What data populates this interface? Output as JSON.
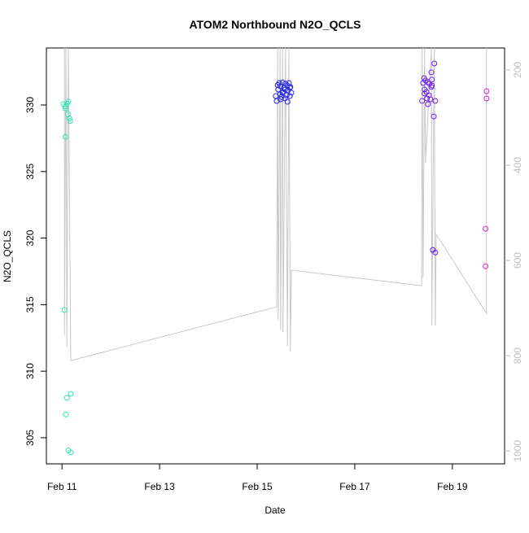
{
  "chart_data": {
    "type": "scatter",
    "title": "ATOM2 Northbound N2O_QCLS",
    "x_label": "Date",
    "y_label": "N2O_QCLS",
    "xlim": [
      10.68,
      20.07
    ],
    "xticks": [
      {
        "value": 11,
        "label": "Feb 11"
      },
      {
        "value": 13,
        "label": "Feb 13"
      },
      {
        "value": 15,
        "label": "Feb 15"
      },
      {
        "value": 17,
        "label": "Feb 17"
      },
      {
        "value": 19,
        "label": "Feb 19"
      }
    ],
    "ylim": [
      303.04,
      334.28
    ],
    "yticks": [
      305,
      310,
      315,
      320,
      325,
      330
    ],
    "y2lim": [
      1027,
      154
    ],
    "y2ticks": [
      200,
      400,
      600,
      800,
      1000
    ],
    "y2_color": "#bebebe",
    "series": [
      {
        "color": "#2ee8b4",
        "x": [
          11.03,
          11.07,
          11.1,
          11.13,
          11.07,
          11.12,
          11.15,
          11.17,
          11.07,
          11.05,
          11.1,
          11.18,
          11.08,
          11.13,
          11.18
        ],
        "values": [
          330.06,
          329.9,
          330.1,
          330.25,
          329.75,
          329.3,
          329.0,
          328.8,
          327.6,
          314.6,
          308.0,
          308.3,
          306.75,
          304.05,
          303.9
        ]
      },
      {
        "color": "#2222e8",
        "x": [
          15.42,
          15.45,
          15.48,
          15.52,
          15.55,
          15.58,
          15.62,
          15.65,
          15.68,
          15.43,
          15.47,
          15.5,
          15.53,
          15.57,
          15.6,
          15.63,
          15.67,
          15.7,
          15.4,
          15.48,
          15.57,
          15.62,
          15.38,
          15.52,
          15.67
        ],
        "values": [
          331.5,
          331.65,
          331.4,
          331.7,
          331.3,
          331.6,
          331.45,
          331.65,
          331.35,
          331.16,
          330.8,
          330.6,
          330.98,
          330.5,
          330.73,
          331.1,
          330.67,
          330.92,
          330.3,
          330.43,
          331.16,
          330.24,
          330.67,
          330.92,
          331.29
        ]
      },
      {
        "color": "#6a1ee8",
        "x": [
          18.63,
          18.57,
          18.42,
          18.45,
          18.5,
          18.53,
          18.58,
          18.4,
          18.43,
          18.47,
          18.52,
          18.57,
          18.38,
          18.48,
          18.5,
          18.65,
          18.55,
          18.43,
          18.62,
          18.6,
          18.65,
          18.58
        ],
        "values": [
          333.12,
          332.45,
          332.02,
          331.84,
          331.71,
          331.59,
          331.47,
          331.65,
          331.16,
          330.98,
          330.73,
          331.35,
          330.31,
          330.49,
          330.06,
          330.31,
          330.43,
          330.86,
          329.14,
          319.11,
          318.92,
          331.9
        ]
      },
      {
        "color": "#e01ee0",
        "x": [
          19.7,
          19.7,
          19.68,
          19.68
        ],
        "values": [
          331.04,
          330.49,
          320.7,
          317.88
        ]
      },
      {
        "type": "line",
        "axis": "y2",
        "color": "#c8c8c8",
        "x": [
          11.05,
          11.05,
          11.08,
          11.1,
          11.13,
          11.18,
          15.4,
          15.42,
          15.43,
          15.47,
          15.48,
          15.52,
          15.53,
          15.58,
          15.62,
          15.65,
          15.68,
          15.7,
          18.37,
          18.38,
          18.4,
          18.43,
          18.45,
          18.57,
          18.58,
          18.63,
          18.65,
          18.67,
          19.7,
          19.7
        ],
        "values": [
          154,
          757.3,
          154,
          782.9,
          154,
          810.3,
          697.4,
          154,
          724.8,
          154,
          745.3,
          154,
          750.4,
          154,
          779.5,
          154,
          791.5,
          620.5,
          653,
          154,
          635.9,
          154,
          394.9,
          154,
          736.8,
          154,
          736.8,
          545.3,
          711.1,
          154
        ]
      }
    ]
  }
}
